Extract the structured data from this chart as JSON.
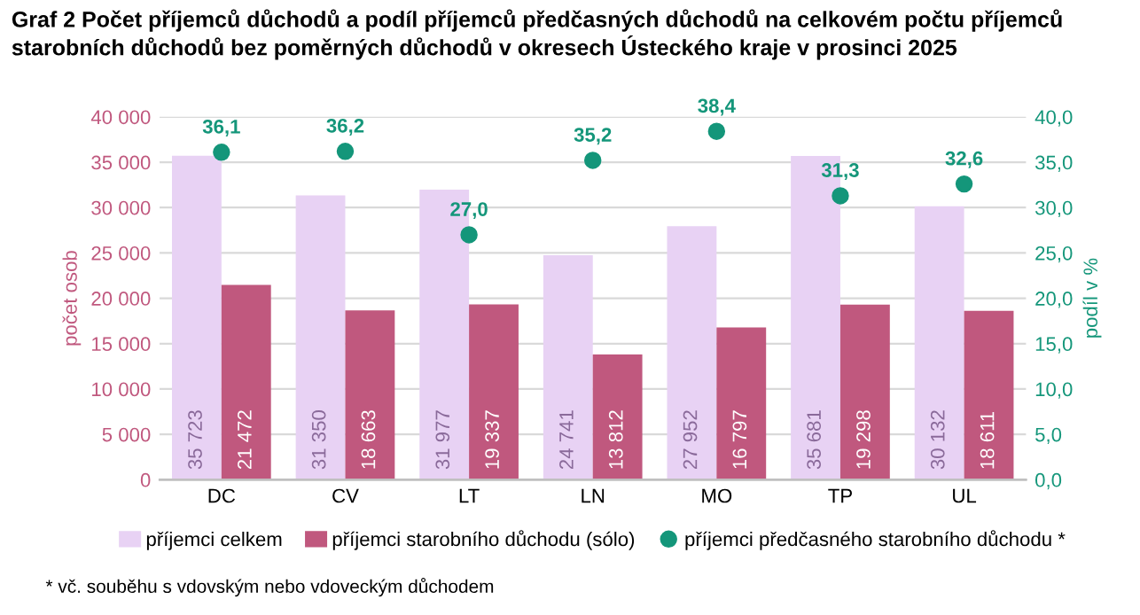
{
  "chart_data": {
    "type": "bar",
    "title": "Graf 2 Počet příjemců důchodů a podíl příjemců předčasných důchodů na celkovém počtu příjemců starobních důchodů bez poměrných důchodů v okresech Ústeckého kraje v prosinci 2025",
    "ylabel": "počet osob",
    "y2label": "podíl v %",
    "categories": [
      "DC",
      "CV",
      "LT",
      "LN",
      "MO",
      "TP",
      "UL"
    ],
    "series": [
      {
        "name": "příjemci celkem",
        "color": "#e8d2f4",
        "values": [
          35723,
          31350,
          31977,
          24741,
          27952,
          35681,
          30132
        ],
        "value_labels": [
          "35 723",
          "31 350",
          "31 977",
          "24 741",
          "27 952",
          "35 681",
          "30 132"
        ]
      },
      {
        "name": "příjemci starobního důchodu (sólo)",
        "color": "#c0587e",
        "values": [
          21472,
          18663,
          19337,
          13812,
          16797,
          19298,
          18611
        ],
        "value_labels": [
          "21 472",
          "18 663",
          "19 337",
          "13 812",
          "16 797",
          "19 298",
          "18 611"
        ]
      },
      {
        "name": "příjemci předčasného starobního důchodu *",
        "type": "scatter",
        "axis": "y2",
        "color": "#14967a",
        "x": [
          "DC",
          "CV",
          "LT",
          "LN",
          "MO",
          "TP",
          "UL"
        ],
        "values": [
          36.1,
          36.2,
          27.0,
          35.2,
          38.4,
          31.3,
          32.6
        ],
        "value_labels": [
          "36,1",
          "36,2",
          "27,0",
          "35,2",
          "38,4",
          "31,3",
          "32,6"
        ]
      }
    ],
    "ylim": [
      0,
      40000
    ],
    "yticks": [
      {
        "value": 0,
        "label": "0"
      },
      {
        "value": 5000,
        "label": "5 000"
      },
      {
        "value": 10000,
        "label": "10 000"
      },
      {
        "value": 15000,
        "label": "15 000"
      },
      {
        "value": 20000,
        "label": "20 000"
      },
      {
        "value": 25000,
        "label": "25 000"
      },
      {
        "value": 30000,
        "label": "30 000"
      },
      {
        "value": 35000,
        "label": "35 000"
      },
      {
        "value": 40000,
        "label": "40 000"
      }
    ],
    "y2lim": [
      0,
      40
    ],
    "y2ticks": [
      {
        "value": 0,
        "label": "0,0"
      },
      {
        "value": 5,
        "label": "5,0"
      },
      {
        "value": 10,
        "label": "10,0"
      },
      {
        "value": 15,
        "label": "15,0"
      },
      {
        "value": 20,
        "label": "20,0"
      },
      {
        "value": 25,
        "label": "25,0"
      },
      {
        "value": 30,
        "label": "30,0"
      },
      {
        "value": 35,
        "label": "35,0"
      },
      {
        "value": 40,
        "label": "40,0"
      }
    ],
    "grid": "y",
    "legend": "bottom",
    "marker": "circle",
    "annotations": [
      "* vč. souběhu s vdovským nebo vdoveckým důchodem"
    ]
  }
}
